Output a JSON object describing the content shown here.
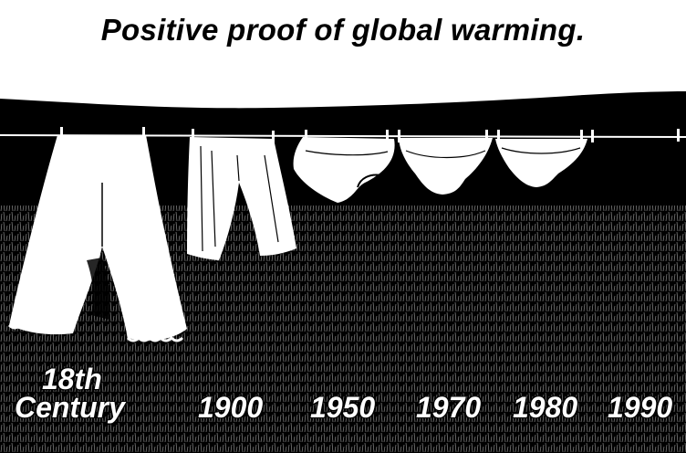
{
  "title": "Positive proof of global warming.",
  "labels": {
    "c18_line1": "18th",
    "c18_line2": "Century",
    "y1900": "1900",
    "y1950": "1950",
    "y1970": "1970",
    "y1980": "1980",
    "y1990": "1990"
  },
  "colors": {
    "ink": "#000000",
    "paper": "#ffffff"
  }
}
